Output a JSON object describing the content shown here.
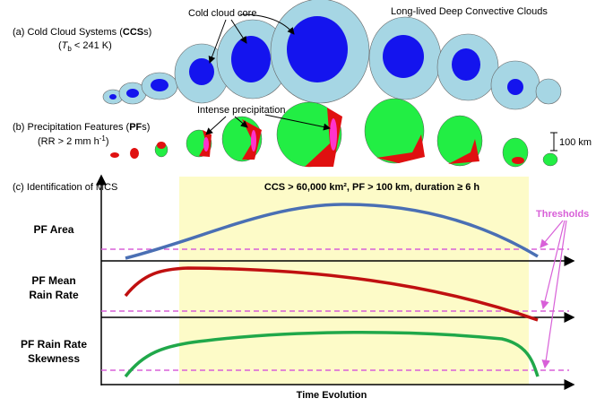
{
  "panel_a": {
    "prefix": "(a) Cold Cloud Systems (",
    "bold": "CCS",
    "suffix": "s)",
    "cond_open": "(",
    "cond_var": "T",
    "cond_sub": "b",
    "cond_rest": " < 241 K)",
    "core_label": "Cold cloud core",
    "long_lived": "Long-lived Deep Convective Clouds"
  },
  "panel_b": {
    "prefix": "(b) Precipitation Features (",
    "bold": "PF",
    "suffix": "s)",
    "cond": "(RR > 2 mm h",
    "cond_sup": "-1",
    "cond_close": ")",
    "intense": "Intense precipitation",
    "scale": "100 km"
  },
  "panel_c": {
    "title": "(c) Identification of MCS",
    "criteria": "CCS > 60,000 km², PF > 100 km, duration ≥ 6 h",
    "thresholds": "Thresholds",
    "rows": [
      [
        "PF Area"
      ],
      [
        "PF Mean",
        "Rain Rate"
      ],
      [
        "PF Rain Rate",
        "Skewness"
      ]
    ],
    "x_label": "Time Evolution"
  }
}
